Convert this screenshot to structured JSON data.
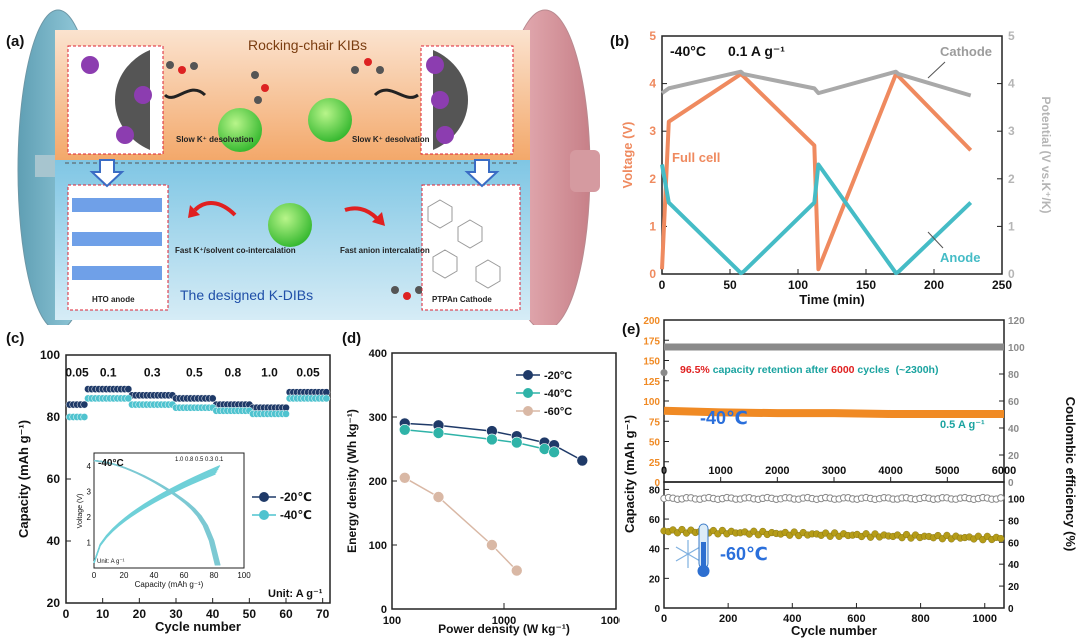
{
  "colors": {
    "full_cell": "#ef8a5f",
    "cathode": "#a9a9a9",
    "anode": "#45bcc6",
    "c20": "#1f3a68",
    "c40": "#2fb3a8",
    "c60": "#d9b8a5",
    "temp40": "#2a6fdb",
    "retention_red": "#e02020",
    "retention_teal": "#1aa3a0",
    "orange_band": "#f08a24",
    "olive": "#b59c18",
    "gray_ce": "#8a8a8a"
  },
  "panel_a": {
    "label": "(a)",
    "top_title": "Rocking-chair KIBs",
    "slow_left": "Slow K⁺ desolvation",
    "slow_right": "Slow K⁺ desolvation",
    "fast_cointercalation": "Fast K⁺/solvent co-intercalation",
    "fast_anion": "Fast anion intercalation",
    "anode_label": "HTO anode",
    "cathode_label": "PTPAn Cathode",
    "bottom_title": "The designed K-DIBs",
    "k_symbol": "K⁺"
  },
  "panel_b": {
    "label": "(b)",
    "condition_temp": "-40°C",
    "condition_rate": "0.1 A g⁻¹",
    "ylabel_left": "Voltage (V)",
    "ylabel_right": "Potential (V vs.K⁺/K)",
    "xlabel": "Time (min)",
    "xticks": [
      "0",
      "50",
      "100",
      "150",
      "200",
      "250"
    ],
    "yticks": [
      "0",
      "1",
      "2",
      "3",
      "4",
      "5"
    ],
    "ann_cathode": "Cathode",
    "ann_full": "Full cell",
    "ann_anode": "Anode"
  },
  "panel_c": {
    "label": "(c)",
    "ylabel": "Capacity (mAh g⁻¹)",
    "xlabel": "Cycle number",
    "xticks": [
      "0",
      "10",
      "20",
      "30",
      "40",
      "50",
      "60",
      "70"
    ],
    "yticks": [
      "20",
      "40",
      "60",
      "80",
      "100"
    ],
    "rates": [
      "0.05",
      "0.1",
      "0.3",
      "0.5",
      "0.8",
      "1.0",
      "0.05"
    ],
    "legend": [
      "-20℃",
      "-40℃"
    ],
    "unit_note": "Unit: A g⁻¹",
    "inset_temp": "-40°C",
    "inset_rates": "1.0 0.8 0.5 0.3 0.1",
    "inset_ylabel": "Voltage (V)",
    "inset_xlabel": "Capacity (mAh g⁻¹)",
    "inset_unit": "Unit: A g⁻¹",
    "inset_xticks": [
      "0",
      "20",
      "40",
      "60",
      "80",
      "100"
    ],
    "inset_yticks": [
      "1",
      "2",
      "3",
      "4"
    ]
  },
  "panel_d": {
    "label": "(d)",
    "ylabel": "Energy density (Wh kg⁻¹)",
    "xlabel": "Power density (W kg⁻¹)",
    "xticks": [
      "100",
      "1000",
      "10000"
    ],
    "yticks": [
      "0",
      "100",
      "200",
      "300",
      "400"
    ],
    "legend": [
      "-20°C",
      "-40°C",
      "-60°C"
    ]
  },
  "panel_e": {
    "label": "(e)",
    "ylabel_left": "Capacity (mAh g⁻¹)",
    "ylabel_right": "Coulombic efficiency (%)",
    "xlabel": "Cycle number",
    "top_xticks": [
      "0",
      "1000",
      "2000",
      "3000",
      "4000",
      "5000",
      "6000"
    ],
    "top_yticks_left": [
      "0",
      "25",
      "50",
      "75",
      "100",
      "125",
      "150",
      "175",
      "200"
    ],
    "top_yticks_right": [
      "0",
      "20",
      "40",
      "60",
      "80",
      "100",
      "120"
    ],
    "bottom_xticks": [
      "0",
      "200",
      "400",
      "600",
      "800",
      "1000"
    ],
    "bottom_yticks_left": [
      "0",
      "20",
      "40",
      "60",
      "80"
    ],
    "bottom_yticks_right": [
      "0",
      "20",
      "40",
      "60",
      "80",
      "100"
    ],
    "retention_pct": "96.5%",
    "retention_mid": " capacity retention after ",
    "retention_cycles": "6000",
    "retention_end": " cycles",
    "retention_time": "(~2300h)",
    "temp_top": "-40℃",
    "rate_top": "0.5 A g⁻¹",
    "temp_bottom": "-60℃"
  },
  "chart_data": [
    {
      "panel": "b",
      "type": "line",
      "xlabel": "Time (min)",
      "ylabel": "Voltage (V)",
      "xlim": [
        0,
        250
      ],
      "ylim": [
        0,
        5
      ],
      "series": [
        {
          "name": "Full cell",
          "x": [
            0,
            5,
            58,
            60,
            112,
            115,
            172,
            174,
            227
          ],
          "y": [
            0.1,
            3.2,
            4.2,
            4.15,
            2.7,
            0.1,
            4.2,
            4.15,
            2.6
          ]
        },
        {
          "name": "Cathode",
          "x": [
            0,
            5,
            58,
            60,
            112,
            115,
            172,
            174,
            227
          ],
          "y": [
            3.8,
            3.9,
            4.25,
            4.2,
            3.9,
            3.8,
            4.25,
            4.2,
            3.75
          ]
        },
        {
          "name": "Anode",
          "x": [
            0,
            5,
            58,
            60,
            112,
            115,
            172,
            174,
            227
          ],
          "y": [
            2.3,
            1.5,
            0.02,
            0.05,
            1.5,
            2.3,
            0.02,
            0.05,
            1.5
          ]
        }
      ]
    },
    {
      "panel": "c",
      "type": "scatter",
      "xlabel": "Cycle number",
      "ylabel": "Capacity (mAh g⁻¹)",
      "xlim": [
        0,
        72
      ],
      "ylim": [
        20,
        100
      ],
      "segments": [
        {
          "rate": "0.05",
          "cycles": [
            1,
            5
          ]
        },
        {
          "rate": "0.1",
          "cycles": [
            6,
            17
          ]
        },
        {
          "rate": "0.3",
          "cycles": [
            18,
            29
          ]
        },
        {
          "rate": "0.5",
          "cycles": [
            30,
            40
          ]
        },
        {
          "rate": "0.8",
          "cycles": [
            41,
            50
          ]
        },
        {
          "rate": "1.0",
          "cycles": [
            51,
            60
          ]
        },
        {
          "rate": "0.05",
          "cycles": [
            61,
            71
          ]
        }
      ],
      "series": [
        {
          "name": "-20℃",
          "values": [
            84,
            89,
            87,
            86,
            84,
            83,
            88
          ]
        },
        {
          "name": "-40℃",
          "values": [
            80,
            86,
            84,
            83,
            82,
            81,
            86
          ]
        }
      ]
    },
    {
      "panel": "d",
      "type": "line",
      "xlabel": "Power density (W kg⁻¹)",
      "ylabel": "Energy density (Wh kg⁻¹)",
      "xscale": "log",
      "xlim": [
        100,
        10000
      ],
      "ylim": [
        0,
        400
      ],
      "series": [
        {
          "name": "-20°C",
          "x": [
            130,
            260,
            780,
            1300,
            2300,
            2800,
            5000
          ],
          "y": [
            290,
            287,
            278,
            270,
            260,
            256,
            232
          ]
        },
        {
          "name": "-40°C",
          "x": [
            130,
            260,
            780,
            1300,
            2300,
            2800
          ],
          "y": [
            280,
            275,
            265,
            260,
            250,
            245
          ]
        },
        {
          "name": "-60°C",
          "x": [
            130,
            260,
            780,
            1300
          ],
          "y": [
            205,
            175,
            100,
            60
          ]
        }
      ]
    },
    {
      "panel": "e-top",
      "type": "scatter",
      "xlabel": "Cycle number",
      "xlim": [
        0,
        6000
      ],
      "ylim": [
        0,
        200
      ],
      "ylim_right": [
        0,
        120
      ],
      "series": [
        {
          "name": "Capacity",
          "x": [
            0,
            1000,
            2000,
            3000,
            4000,
            5000,
            6000
          ],
          "y": [
            88,
            86,
            85,
            85,
            84,
            84,
            84
          ]
        },
        {
          "name": "Coulombic efficiency",
          "x": [
            0,
            1000,
            2000,
            3000,
            4000,
            5000,
            6000
          ],
          "y": [
            100,
            100,
            100,
            100,
            100,
            100,
            100
          ]
        }
      ]
    },
    {
      "panel": "e-bottom",
      "type": "scatter",
      "xlabel": "Cycle number",
      "xlim": [
        0,
        1060
      ],
      "ylim": [
        0,
        80
      ],
      "ylim_right": [
        0,
        110
      ],
      "series": [
        {
          "name": "Capacity",
          "x": [
            0,
            200,
            400,
            600,
            800,
            1000,
            1050
          ],
          "y": [
            52,
            51,
            50,
            50,
            49,
            48,
            47
          ]
        },
        {
          "name": "Coulombic efficiency",
          "x": [
            0,
            200,
            400,
            600,
            800,
            1000,
            1050
          ],
          "y": [
            100,
            100,
            100,
            100,
            100,
            100,
            100
          ]
        }
      ]
    }
  ]
}
